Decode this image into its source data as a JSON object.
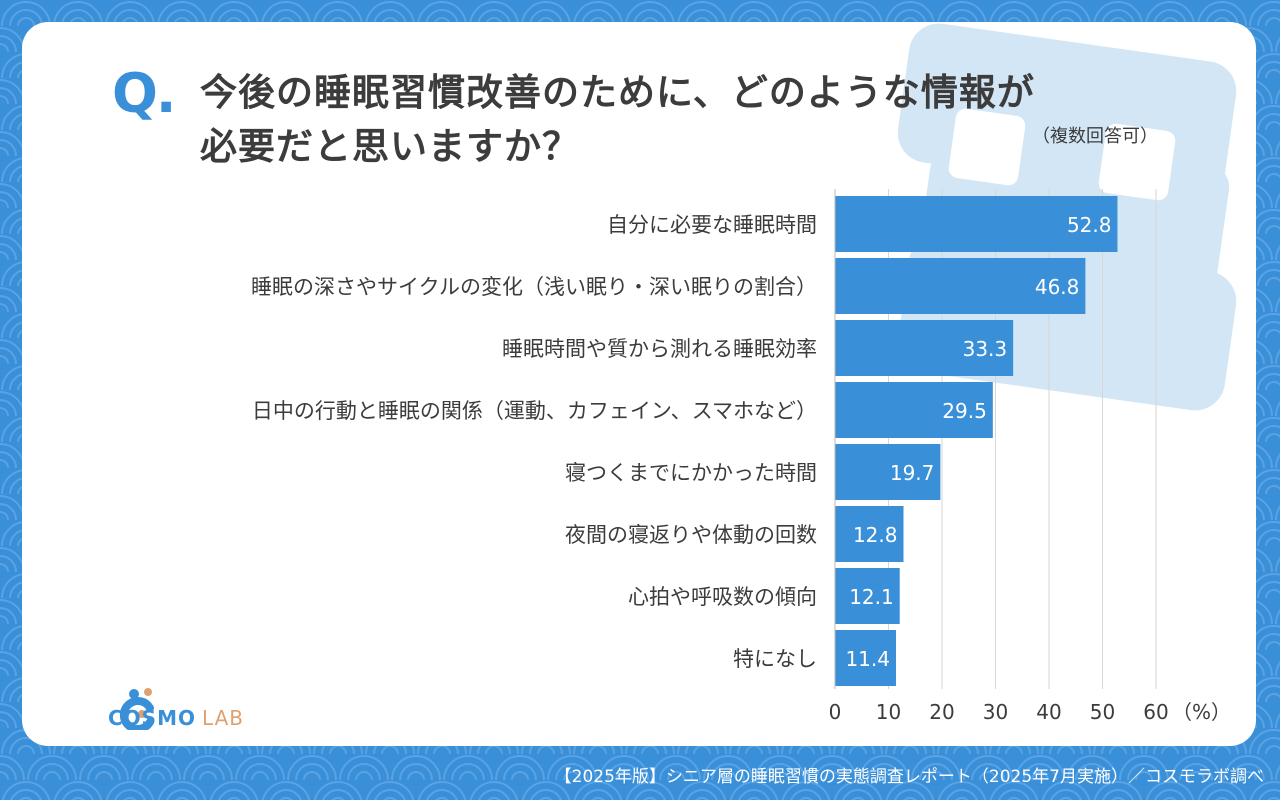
{
  "question": {
    "mark": "Q.",
    "line1": "今後の睡眠習慣改善のために、どのような情報が",
    "line2": "必要だと思いますか？",
    "note": "（複数回答可）"
  },
  "logo": {
    "name": "COSMO",
    "suffix": "LAB"
  },
  "footer": "【2025年版】シニア層の睡眠習慣の実態調査レポート（2025年7月実施）／コスモラボ調べ",
  "colors": {
    "bar": "#3a8fd9",
    "background": "#3a8fd9",
    "text": "#3c3c3c",
    "decor": "#cfe3f5"
  },
  "chart_data": {
    "type": "bar",
    "orientation": "horizontal",
    "categories": [
      "自分に必要な睡眠時間",
      "睡眠の深さやサイクルの変化（浅い眠り・深い眠りの割合）",
      "睡眠時間や質から測れる睡眠効率",
      "日中の行動と睡眠の関係（運動、カフェイン、スマホなど）",
      "寝つくまでにかかった時間",
      "夜間の寝返りや体動の回数",
      "心拍や呼吸数の傾向",
      "特になし"
    ],
    "values": [
      52.8,
      46.8,
      33.3,
      29.5,
      19.7,
      12.8,
      12.1,
      11.4
    ],
    "xlim": [
      0,
      60
    ],
    "xticks": [
      "0",
      "10",
      "20",
      "30",
      "40",
      "50",
      "60"
    ],
    "unit": "（%）",
    "grid": true
  }
}
